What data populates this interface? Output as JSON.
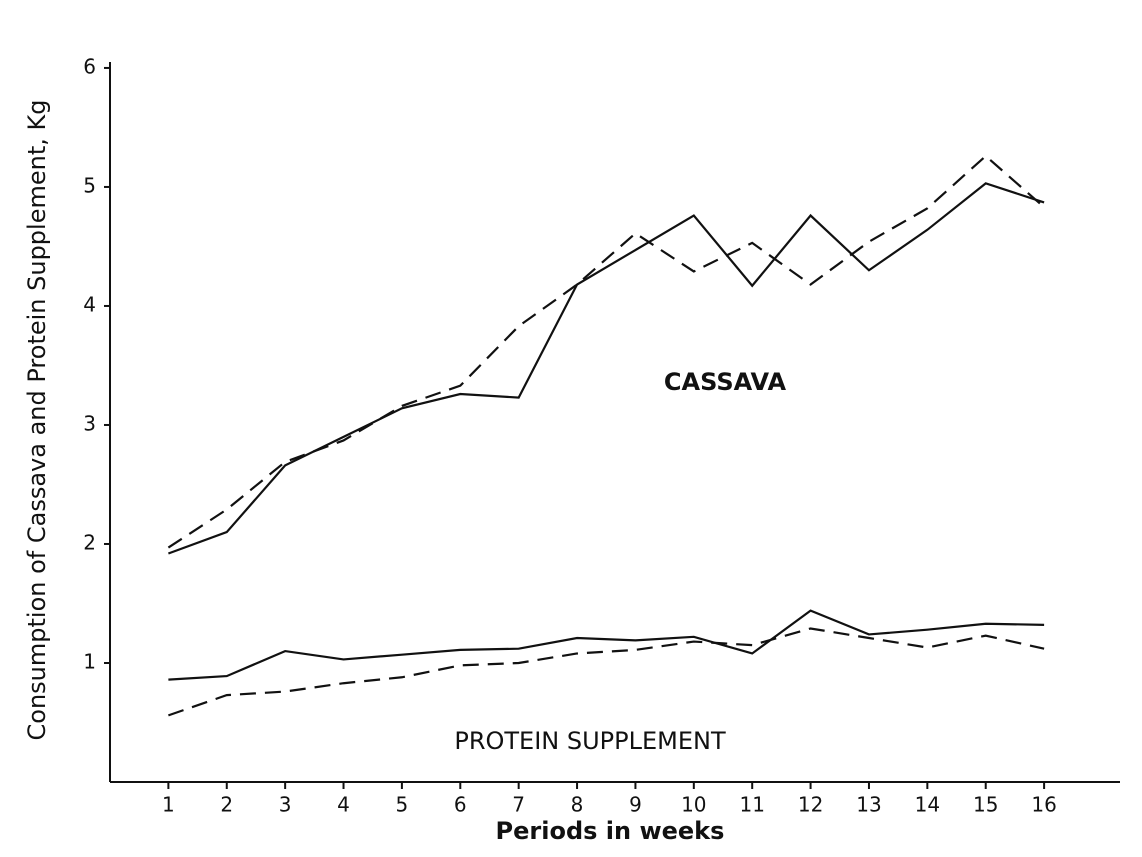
{
  "chart_data": {
    "type": "line",
    "y_label": "Consumption of Cassava and Protein Supplement, Kg",
    "x_label": "Periods in weeks",
    "annotations": [
      "CASSAVA",
      "PROTEIN SUPPLEMENT"
    ],
    "x": [
      1,
      2,
      3,
      4,
      5,
      6,
      7,
      8,
      9,
      10,
      11,
      12,
      13,
      14,
      15,
      16
    ],
    "series": [
      {
        "color": "#111111",
        "style": "solid",
        "values": [
          1.92,
          2.1,
          2.66,
          2.9,
          3.14,
          3.26,
          3.23,
          4.18,
          4.47,
          4.76,
          4.17,
          4.76,
          4.3,
          4.64,
          5.03,
          4.87
        ]
      },
      {
        "color": "#111111",
        "style": "dashed",
        "values": [
          1.97,
          2.29,
          2.69,
          2.87,
          3.16,
          3.33,
          3.83,
          4.18,
          4.61,
          4.29,
          4.53,
          4.18,
          4.54,
          4.82,
          5.26,
          4.83
        ]
      },
      {
        "color": "#111111",
        "style": "solid",
        "values": [
          0.86,
          0.89,
          1.1,
          1.03,
          1.07,
          1.11,
          1.12,
          1.21,
          1.19,
          1.22,
          1.08,
          1.44,
          1.24,
          1.28,
          1.33,
          1.32
        ]
      },
      {
        "color": "#111111",
        "style": "dashed",
        "values": [
          0.56,
          0.73,
          0.76,
          0.83,
          0.88,
          0.98,
          1.0,
          1.08,
          1.11,
          1.18,
          1.15,
          1.29,
          1.21,
          1.13,
          1.23,
          1.12
        ]
      }
    ],
    "xlim": [
      0,
      17.3
    ],
    "xticks": [
      1,
      2,
      3,
      4,
      5,
      6,
      7,
      8,
      9,
      10,
      11,
      12,
      13,
      14,
      15,
      16
    ],
    "ylim": [
      0,
      6.05
    ],
    "yticks": [
      1,
      2,
      3,
      4,
      5,
      6
    ],
    "grid": false
  }
}
